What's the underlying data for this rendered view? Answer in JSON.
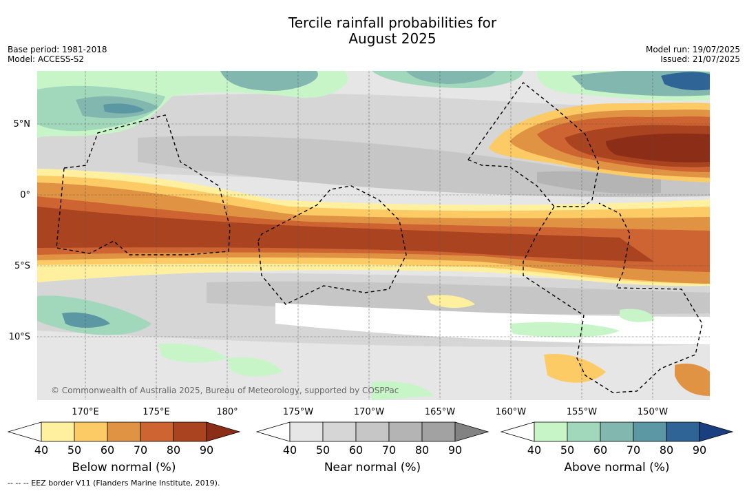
{
  "title_line1": "Tercile rainfall probabilities for",
  "title_line2": "August 2025",
  "base_period": "Base period: 1981-2018",
  "model": "Model: ACCESS-S2",
  "model_run": "Model run: 19/07/2025",
  "issued": "Issued: 21/07/2025",
  "copyright": "© Commonwealth of Australia 2025, Bureau of Meteorology, supported by COSPPac",
  "footnote": "--  --  -- EEZ border V11 (Flanders Marine Institute, 2019).",
  "lat_labels": [
    "5°N",
    "0°",
    "5°S",
    "10°S"
  ],
  "lon_labels": [
    "170°E",
    "175°E",
    "180°",
    "175°W",
    "170°W",
    "165°W",
    "160°W",
    "155°W",
    "150°W"
  ],
  "colorbars": [
    {
      "title": "Below normal (%)",
      "ticks": [
        "40",
        "50",
        "60",
        "70",
        "80",
        "90"
      ],
      "colors": [
        "#fff0a0",
        "#fdcb66",
        "#e09342",
        "#cd6432",
        "#aa4420",
        "#8c2d18"
      ]
    },
    {
      "title": "Near normal (%)",
      "ticks": [
        "40",
        "50",
        "60",
        "70",
        "80",
        "90"
      ],
      "colors": [
        "#e6e6e6",
        "#d6d6d6",
        "#c6c6c6",
        "#b4b4b4",
        "#a2a2a2",
        "#828282"
      ]
    },
    {
      "title": "Above normal (%)",
      "ticks": [
        "40",
        "50",
        "60",
        "70",
        "80",
        "90"
      ],
      "colors": [
        "#c8f5c8",
        "#a1d8bb",
        "#82b7af",
        "#5b98a4",
        "#2f6496",
        "#1a3f80"
      ]
    }
  ]
}
